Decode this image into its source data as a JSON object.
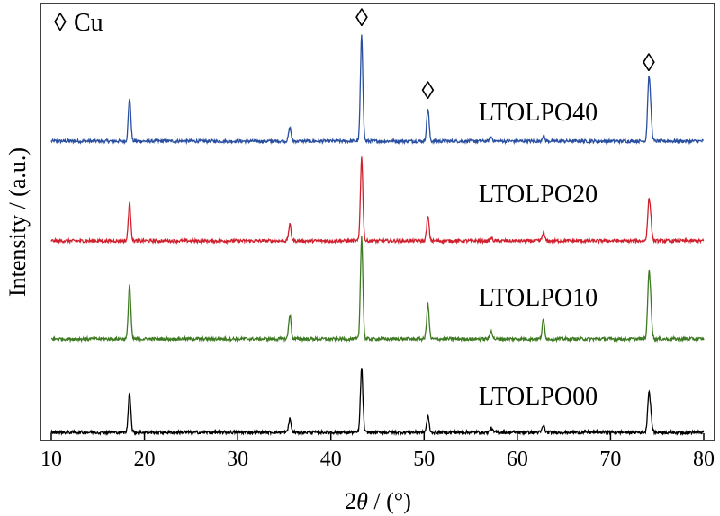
{
  "chart_data": {
    "type": "line",
    "xlabel": "2θ / (°)",
    "xlabel_main": "2",
    "xlabel_theta": "θ",
    "xlabel_unit": " / (°)",
    "ylabel": "Intensity / (a.u.)",
    "xlim": [
      10,
      80
    ],
    "x_ticks": [
      10,
      20,
      30,
      40,
      50,
      60,
      70,
      80
    ],
    "legend": {
      "marker": "◊",
      "text": "Cu"
    },
    "cu_marker": "◊",
    "cu_peaks": [
      43.3,
      50.4,
      74.1
    ],
    "grid": false,
    "series": [
      {
        "name": "LTOLPO40",
        "color": "#2a4fa0",
        "peaks": [
          {
            "x": 18.4,
            "h": 1.6
          },
          {
            "x": 35.6,
            "h": 0.5
          },
          {
            "x": 43.3,
            "h": 3.9
          },
          {
            "x": 50.4,
            "h": 1.2
          },
          {
            "x": 57.2,
            "h": 0.15
          },
          {
            "x": 62.8,
            "h": 0.2
          },
          {
            "x": 74.1,
            "h": 2.1
          },
          {
            "x": 74.3,
            "h": 0.9
          }
        ]
      },
      {
        "name": "LTOLPO20",
        "color": "#d0212f",
        "peaks": [
          {
            "x": 18.4,
            "h": 1.4
          },
          {
            "x": 35.6,
            "h": 0.6
          },
          {
            "x": 43.3,
            "h": 3.1
          },
          {
            "x": 50.4,
            "h": 0.9
          },
          {
            "x": 57.2,
            "h": 0.1
          },
          {
            "x": 62.8,
            "h": 0.3
          },
          {
            "x": 74.1,
            "h": 1.3
          },
          {
            "x": 74.3,
            "h": 0.7
          }
        ]
      },
      {
        "name": "LTOLPO10",
        "color": "#3d7a22",
        "peaks": [
          {
            "x": 18.4,
            "h": 2.0
          },
          {
            "x": 35.6,
            "h": 0.9
          },
          {
            "x": 43.3,
            "h": 3.8
          },
          {
            "x": 50.4,
            "h": 1.3
          },
          {
            "x": 57.2,
            "h": 0.3
          },
          {
            "x": 62.8,
            "h": 0.7
          },
          {
            "x": 74.1,
            "h": 2.1
          },
          {
            "x": 74.3,
            "h": 1.1
          }
        ]
      },
      {
        "name": "LTOLPO00",
        "color": "#000000",
        "peaks": [
          {
            "x": 18.4,
            "h": 1.5
          },
          {
            "x": 35.6,
            "h": 0.5
          },
          {
            "x": 43.3,
            "h": 2.4
          },
          {
            "x": 50.4,
            "h": 0.6
          },
          {
            "x": 57.2,
            "h": 0.15
          },
          {
            "x": 62.8,
            "h": 0.25
          },
          {
            "x": 74.1,
            "h": 1.3
          },
          {
            "x": 74.3,
            "h": 0.6
          }
        ]
      }
    ]
  }
}
